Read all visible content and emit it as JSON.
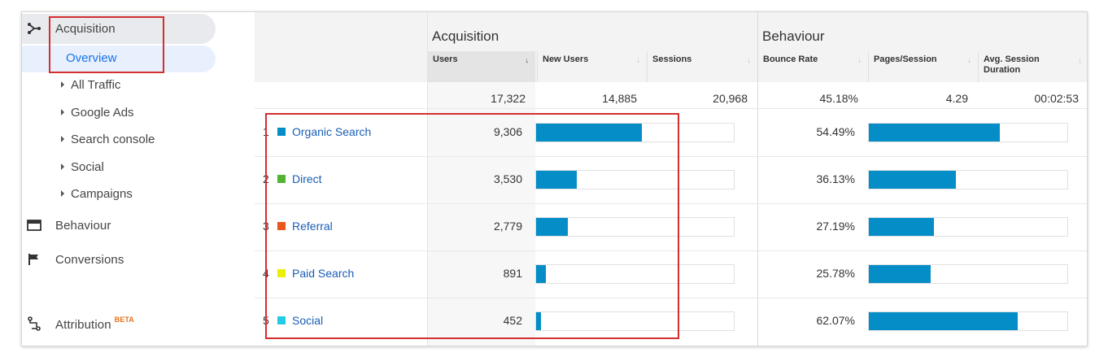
{
  "sidebar": {
    "acquisition": "Acquisition",
    "overview": "Overview",
    "sub_items": [
      "All Traffic",
      "Google Ads",
      "Search console",
      "Social",
      "Campaigns"
    ],
    "behaviour": "Behaviour",
    "conversions": "Conversions",
    "attribution": "Attribution",
    "attribution_badge": "BETA"
  },
  "table": {
    "group_acquisition": "Acquisition",
    "group_behaviour": "Behaviour",
    "columns": [
      "Users",
      "New Users",
      "Sessions",
      "Bounce Rate",
      "Pages/Session",
      "Avg. Session Duration"
    ],
    "sort_indicator": "↓",
    "sortable_indicator": "↓",
    "totals": [
      "17,322",
      "14,885",
      "20,968",
      "45.18%",
      "4.29",
      "00:02:53"
    ],
    "rows": [
      {
        "rank": "1",
        "channel": "Organic Search",
        "color": "#058dc7",
        "users": "9,306",
        "users_share": 0.537,
        "bounce": "54.49%",
        "bounce_share": 0.66
      },
      {
        "rank": "2",
        "channel": "Direct",
        "color": "#50b432",
        "users": "3,530",
        "users_share": 0.204,
        "bounce": "36.13%",
        "bounce_share": 0.437
      },
      {
        "rank": "3",
        "channel": "Referral",
        "color": "#ed561b",
        "users": "2,779",
        "users_share": 0.16,
        "bounce": "27.19%",
        "bounce_share": 0.329
      },
      {
        "rank": "4",
        "channel": "Paid Search",
        "color": "#edef00",
        "users": "891",
        "users_share": 0.051,
        "bounce": "25.78%",
        "bounce_share": 0.312
      },
      {
        "rank": "5",
        "channel": "Social",
        "color": "#24cbe5",
        "users": "452",
        "users_share": 0.026,
        "bounce": "62.07%",
        "bounce_share": 0.751
      }
    ]
  }
}
